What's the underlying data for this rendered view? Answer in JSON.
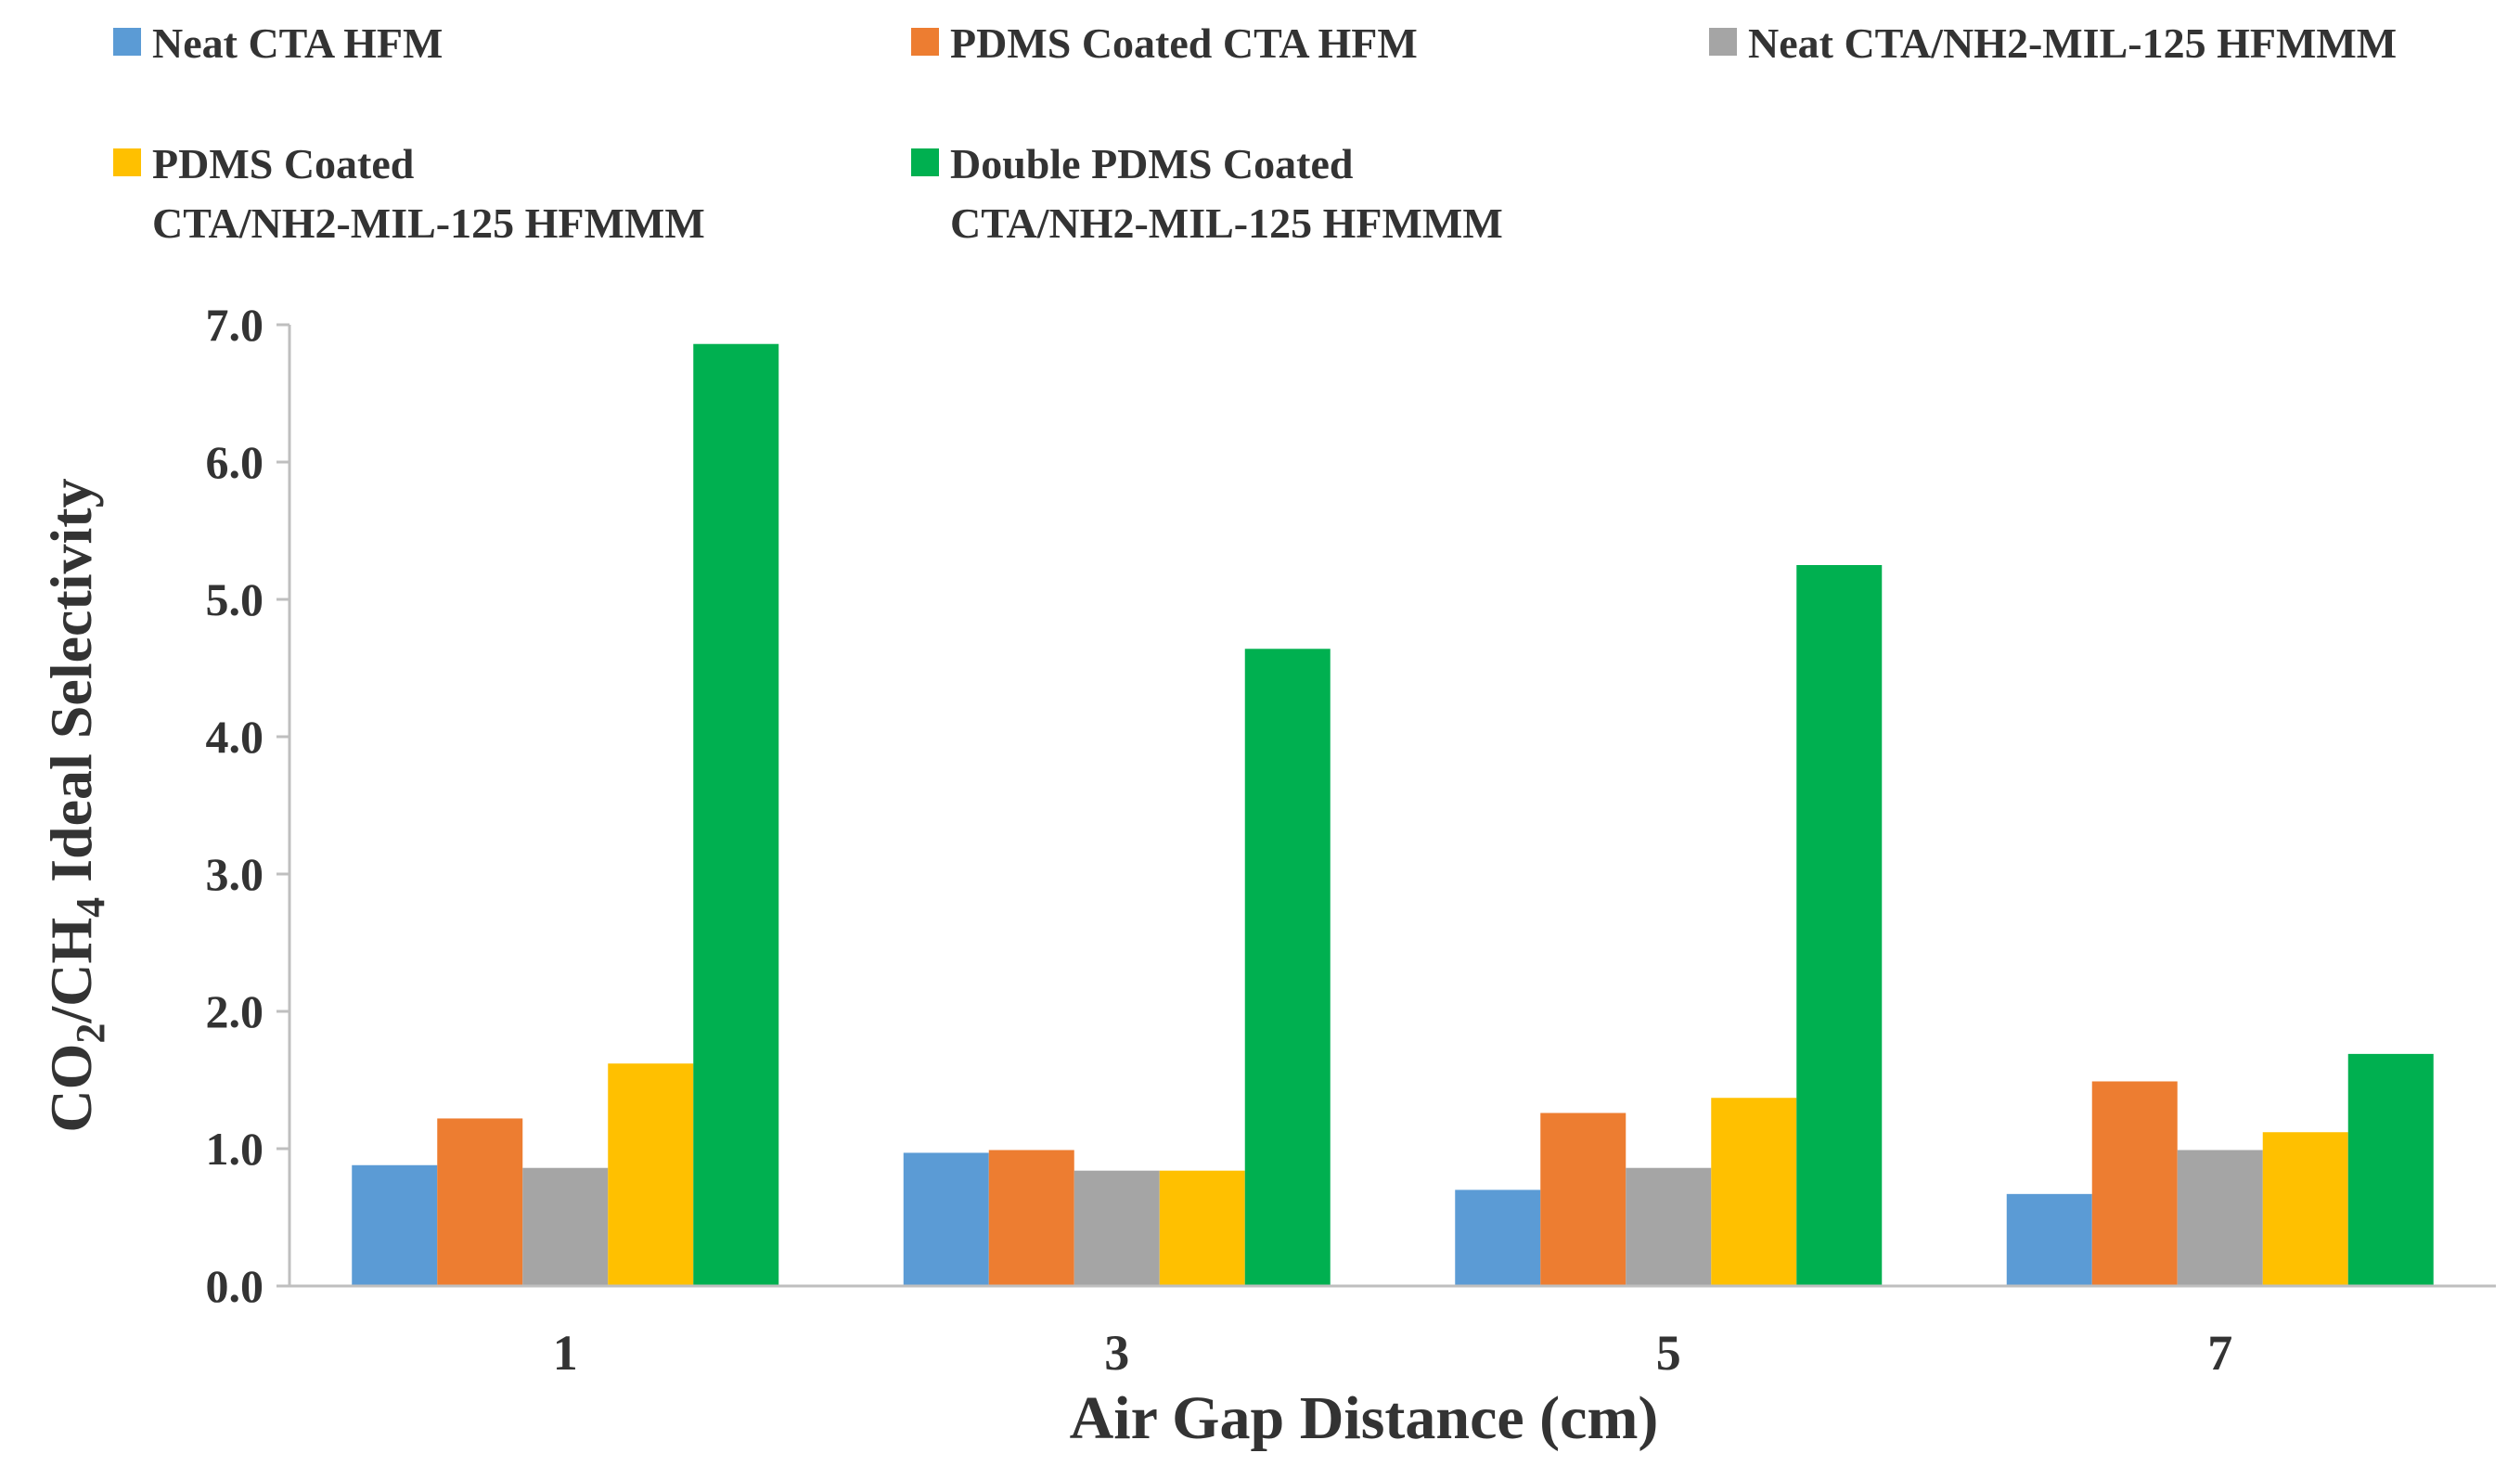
{
  "chart_data": {
    "type": "bar",
    "categories": [
      "1",
      "3",
      "5",
      "7"
    ],
    "series": [
      {
        "name": "Neat CTA HFM",
        "color": "#5b9bd5",
        "values": [
          0.88,
          0.97,
          0.7,
          0.67
        ]
      },
      {
        "name": "PDMS Coated CTA HFM",
        "color": "#ed7d31",
        "values": [
          1.22,
          0.99,
          1.26,
          1.49
        ]
      },
      {
        "name": "Neat CTA/NH2-MIL-125 HFMMM",
        "color": "#a5a5a5",
        "values": [
          0.86,
          0.84,
          0.86,
          0.99
        ]
      },
      {
        "name_lines": [
          "PDMS Coated",
          "CTA/NH2-MIL-125 HFMMM"
        ],
        "color": "#ffc000",
        "values": [
          1.62,
          0.84,
          1.37,
          1.12
        ]
      },
      {
        "name_lines": [
          "Double PDMS Coated",
          "CTA/NH2-MIL-125 HFMMM"
        ],
        "color": "#00b050",
        "values": [
          6.86,
          4.64,
          5.25,
          1.69
        ]
      }
    ],
    "xlabel": "Air Gap Distance (cm)",
    "ylabel": {
      "parts": [
        "CO",
        "2",
        "/CH",
        "4",
        " Ideal Selectivity"
      ]
    },
    "ylim": [
      0,
      7
    ],
    "yticks": [
      "0.0",
      "1.0",
      "2.0",
      "3.0",
      "4.0",
      "5.0",
      "6.0",
      "7.0"
    ],
    "grid": false,
    "legend_position": "top"
  }
}
